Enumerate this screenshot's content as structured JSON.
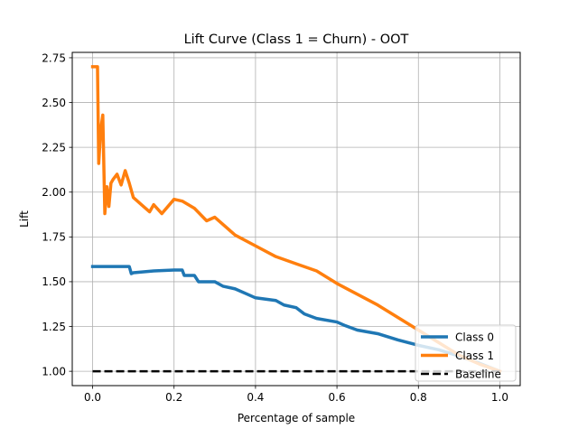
{
  "chart_data": {
    "type": "line",
    "title": "Lift Curve (Class 1 = Churn) - OOT",
    "xlabel": "Percentage of sample",
    "ylabel": "Lift",
    "xlim": [
      -0.05,
      1.05
    ],
    "ylim": [
      0.92,
      2.78
    ],
    "xticks": [
      0.0,
      0.2,
      0.4,
      0.6,
      0.8,
      1.0
    ],
    "xtick_labels": [
      "0.0",
      "0.2",
      "0.4",
      "0.6",
      "0.8",
      "1.0"
    ],
    "yticks": [
      1.0,
      1.25,
      1.5,
      1.75,
      2.0,
      2.25,
      2.5,
      2.75
    ],
    "ytick_labels": [
      "1.00",
      "1.25",
      "1.50",
      "1.75",
      "2.00",
      "2.25",
      "2.50",
      "2.75"
    ],
    "grid": true,
    "legend_position": "bottom-right",
    "series": [
      {
        "name": "Class 0",
        "color": "#1f77b4",
        "style": "solid",
        "x": [
          0.0,
          0.05,
          0.09,
          0.095,
          0.1,
          0.15,
          0.2,
          0.22,
          0.225,
          0.25,
          0.26,
          0.3,
          0.32,
          0.35,
          0.38,
          0.4,
          0.45,
          0.47,
          0.5,
          0.52,
          0.55,
          0.6,
          0.62,
          0.65,
          0.7,
          0.75,
          0.8,
          0.85,
          0.9,
          0.95,
          1.0
        ],
        "y": [
          1.585,
          1.585,
          1.585,
          1.545,
          1.55,
          1.56,
          1.565,
          1.565,
          1.535,
          1.535,
          1.5,
          1.5,
          1.475,
          1.46,
          1.43,
          1.41,
          1.395,
          1.37,
          1.355,
          1.32,
          1.295,
          1.275,
          1.255,
          1.23,
          1.21,
          1.175,
          1.145,
          1.12,
          1.085,
          1.045,
          1.0
        ]
      },
      {
        "name": "Class 1",
        "color": "#ff7f0e",
        "style": "solid",
        "x": [
          0.0,
          0.012,
          0.015,
          0.02,
          0.025,
          0.03,
          0.035,
          0.04,
          0.045,
          0.05,
          0.06,
          0.07,
          0.08,
          0.09,
          0.1,
          0.12,
          0.14,
          0.15,
          0.17,
          0.2,
          0.22,
          0.25,
          0.28,
          0.3,
          0.35,
          0.4,
          0.45,
          0.5,
          0.55,
          0.6,
          0.65,
          0.7,
          0.75,
          0.8,
          0.85,
          0.9,
          0.95,
          1.0
        ],
        "y": [
          2.7,
          2.7,
          2.16,
          2.35,
          2.43,
          1.88,
          2.03,
          1.92,
          2.05,
          2.07,
          2.1,
          2.04,
          2.12,
          2.05,
          1.97,
          1.93,
          1.89,
          1.93,
          1.88,
          1.96,
          1.95,
          1.91,
          1.84,
          1.86,
          1.76,
          1.7,
          1.64,
          1.6,
          1.56,
          1.49,
          1.43,
          1.37,
          1.3,
          1.23,
          1.16,
          1.09,
          1.04,
          1.0
        ]
      },
      {
        "name": "Baseline",
        "color": "#000000",
        "style": "dashed",
        "x": [
          0.0,
          1.0
        ],
        "y": [
          1.0,
          1.0
        ]
      }
    ]
  }
}
